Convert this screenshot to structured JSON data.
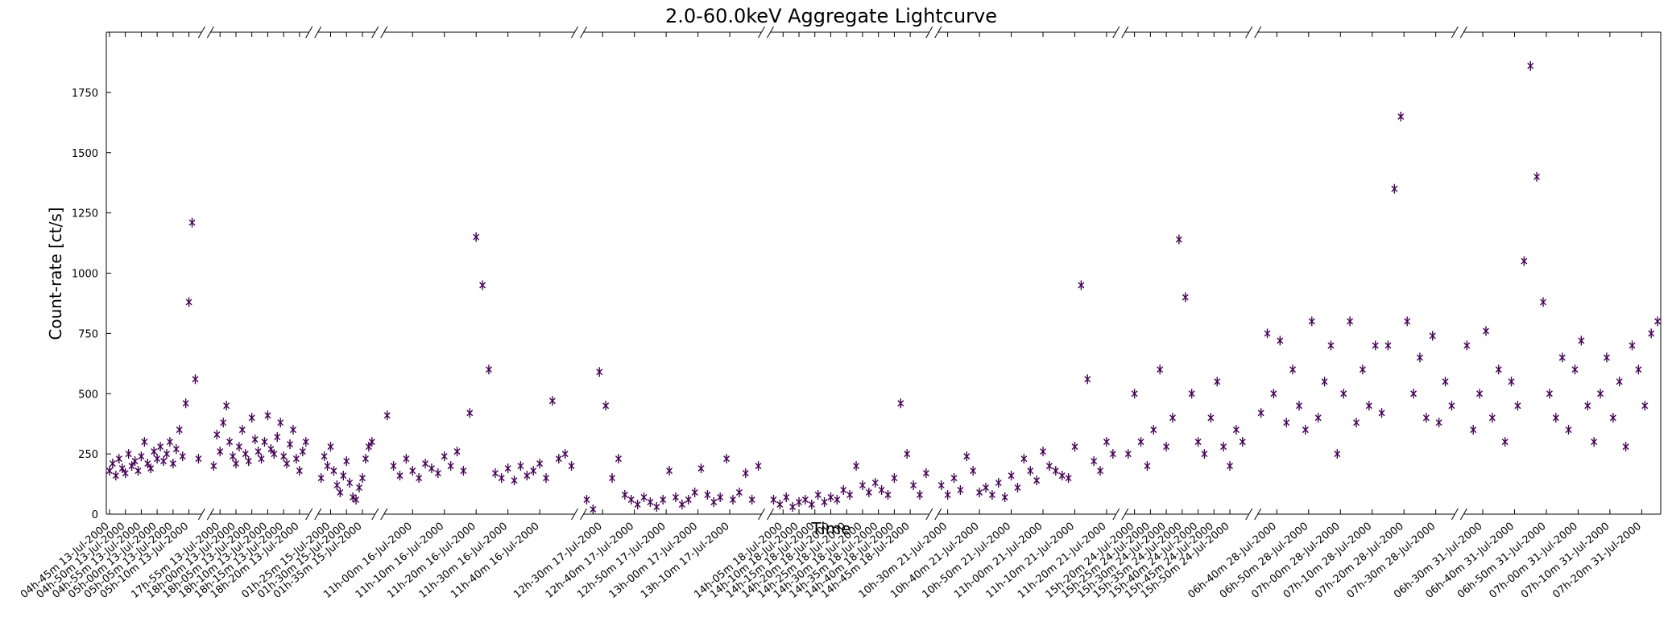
{
  "chart_data": {
    "type": "scatter",
    "title": "2.0-60.0keV Aggregate Lightcurve",
    "xlabel": "Time",
    "ylabel": "Count-rate [ct/s]",
    "color": "#440154",
    "ylim": [
      0,
      2000
    ],
    "yticks": [
      0,
      250,
      500,
      750,
      1000,
      1250,
      1500,
      1750
    ],
    "segments": [
      {
        "xlim": [
          284,
          314
        ],
        "xticks": [
          {
            "value": 285,
            "label": "04h-45m 13-Jul-2000"
          },
          {
            "value": 290,
            "label": "04h-50m 13-Jul-2000"
          },
          {
            "value": 295,
            "label": "04h-55m 13-Jul-2000"
          },
          {
            "value": 300,
            "label": "05h-00m 13-Jul-2000"
          },
          {
            "value": 305,
            "label": "05h-05m 13-Jul-2000"
          },
          {
            "value": 310,
            "label": "05h-10m 13-Jul-2000"
          }
        ],
        "x": [
          285,
          286,
          287,
          288,
          289,
          290,
          291,
          292,
          293,
          294,
          295,
          296,
          297,
          298,
          299,
          300,
          301,
          302,
          303,
          304,
          305,
          306,
          307,
          308,
          309,
          310,
          311,
          312,
          313
        ],
        "values": [
          180,
          210,
          160,
          230,
          190,
          170,
          250,
          200,
          220,
          180,
          240,
          300,
          210,
          190,
          260,
          230,
          280,
          220,
          250,
          300,
          210,
          270,
          350,
          240,
          460,
          880,
          1210,
          560,
          230
        ]
      },
      {
        "xlim": [
          1072,
          1103
        ],
        "xticks": [
          {
            "value": 1075,
            "label": "17h-55m 13-Jul-2000"
          },
          {
            "value": 1080,
            "label": "18h-00m 13-Jul-2000"
          },
          {
            "value": 1085,
            "label": "18h-05m 13-Jul-2000"
          },
          {
            "value": 1090,
            "label": "18h-10m 13-Jul-2000"
          },
          {
            "value": 1095,
            "label": "18h-15m 13-Jul-2000"
          },
          {
            "value": 1100,
            "label": "18h-20m 13-Jul-2000"
          }
        ],
        "x": [
          1073,
          1074,
          1075,
          1076,
          1077,
          1078,
          1079,
          1080,
          1081,
          1082,
          1083,
          1084,
          1085,
          1086,
          1087,
          1088,
          1089,
          1090,
          1091,
          1092,
          1093,
          1094,
          1095,
          1096,
          1097,
          1098,
          1099,
          1100,
          1101,
          1102
        ],
        "values": [
          200,
          330,
          260,
          380,
          450,
          300,
          240,
          210,
          280,
          350,
          250,
          220,
          400,
          310,
          260,
          230,
          300,
          410,
          270,
          250,
          320,
          380,
          240,
          210,
          290,
          350,
          230,
          180,
          260,
          300
        ]
      },
      {
        "xlim": [
          81,
          99
        ],
        "xticks": [
          {
            "value": 85,
            "label": "01h-25m 15-Jul-2000"
          },
          {
            "value": 90,
            "label": "01h-30m 15-Jul-2000"
          },
          {
            "value": 95,
            "label": "01h-35m 15-Jul-2000"
          }
        ],
        "x": [
          82,
          83,
          84,
          85,
          86,
          87,
          88,
          89,
          90,
          91,
          92,
          93,
          94,
          95,
          96,
          97,
          98
        ],
        "values": [
          150,
          240,
          200,
          280,
          180,
          120,
          90,
          160,
          220,
          130,
          70,
          60,
          110,
          150,
          230,
          280,
          300
        ]
      },
      {
        "xlim": [
          651,
          711
        ],
        "xticks": [
          {
            "value": 660,
            "label": "11h-00m 16-Jul-2000"
          },
          {
            "value": 670,
            "label": "11h-10m 16-Jul-2000"
          },
          {
            "value": 680,
            "label": "11h-20m 16-Jul-2000"
          },
          {
            "value": 690,
            "label": "11h-30m 16-Jul-2000"
          },
          {
            "value": 700,
            "label": "11h-40m 16-Jul-2000"
          }
        ],
        "x": [
          652,
          654,
          656,
          658,
          660,
          662,
          664,
          666,
          668,
          670,
          672,
          674,
          676,
          678,
          680,
          682,
          684,
          686,
          688,
          690,
          692,
          694,
          696,
          698,
          700,
          702,
          704,
          706,
          708,
          710
        ],
        "values": [
          410,
          200,
          160,
          230,
          180,
          150,
          210,
          190,
          170,
          240,
          200,
          260,
          180,
          420,
          1150,
          950,
          600,
          170,
          150,
          190,
          140,
          200,
          160,
          180,
          210,
          150,
          470,
          230,
          250,
          200
        ]
      },
      {
        "xlim": [
          744,
          800
        ],
        "xticks": [
          {
            "value": 750,
            "label": "12h-30m 17-Jul-2000"
          },
          {
            "value": 760,
            "label": "12h-40m 17-Jul-2000"
          },
          {
            "value": 770,
            "label": "12h-50m 17-Jul-2000"
          },
          {
            "value": 780,
            "label": "13h-00m 17-Jul-2000"
          },
          {
            "value": 790,
            "label": "13h-10m 17-Jul-2000"
          }
        ],
        "x": [
          745,
          747,
          749,
          751,
          753,
          755,
          757,
          759,
          761,
          763,
          765,
          767,
          769,
          771,
          773,
          775,
          777,
          779,
          781,
          783,
          785,
          787,
          789,
          791,
          793,
          795,
          797,
          799
        ],
        "values": [
          60,
          20,
          590,
          450,
          150,
          230,
          80,
          60,
          40,
          70,
          50,
          30,
          60,
          180,
          70,
          40,
          60,
          90,
          190,
          80,
          50,
          70,
          230,
          60,
          90,
          170,
          60,
          200
        ]
      },
      {
        "xlim": [
          841,
          891
        ],
        "xticks": [
          {
            "value": 845,
            "label": "14h-05m 18-Jul-2000"
          },
          {
            "value": 850,
            "label": "14h-10m 18-Jul-2000"
          },
          {
            "value": 855,
            "label": "14h-15m 18-Jul-2000"
          },
          {
            "value": 860,
            "label": "14h-20m 18-Jul-2000"
          },
          {
            "value": 865,
            "label": "14h-25m 18-Jul-2000"
          },
          {
            "value": 870,
            "label": "14h-30m 18-Jul-2000"
          },
          {
            "value": 875,
            "label": "14h-35m 18-Jul-2000"
          },
          {
            "value": 880,
            "label": "14h-40m 18-Jul-2000"
          },
          {
            "value": 885,
            "label": "14h-45m 18-Jul-2000"
          }
        ],
        "x": [
          842,
          844,
          846,
          848,
          850,
          852,
          854,
          856,
          858,
          860,
          862,
          864,
          866,
          868,
          870,
          872,
          874,
          876,
          878,
          880,
          882,
          884,
          886,
          888,
          890
        ],
        "values": [
          60,
          40,
          70,
          30,
          50,
          60,
          40,
          80,
          50,
          70,
          60,
          100,
          80,
          200,
          120,
          90,
          130,
          100,
          80,
          150,
          460,
          250,
          120,
          80,
          170
        ]
      },
      {
        "xlim": [
          627,
          683
        ],
        "xticks": [
          {
            "value": 630,
            "label": "10h-30m 21-Jul-2000"
          },
          {
            "value": 640,
            "label": "10h-40m 21-Jul-2000"
          },
          {
            "value": 650,
            "label": "10h-50m 21-Jul-2000"
          },
          {
            "value": 660,
            "label": "11h-00m 21-Jul-2000"
          },
          {
            "value": 670,
            "label": "11h-10m 21-Jul-2000"
          },
          {
            "value": 680,
            "label": "11h-20m 21-Jul-2000"
          }
        ],
        "x": [
          628,
          630,
          632,
          634,
          636,
          638,
          640,
          642,
          644,
          646,
          648,
          650,
          652,
          654,
          656,
          658,
          660,
          662,
          664,
          666,
          668,
          670,
          672,
          674,
          676,
          678,
          680,
          682
        ],
        "values": [
          120,
          80,
          150,
          100,
          240,
          180,
          90,
          110,
          80,
          130,
          70,
          160,
          110,
          230,
          180,
          140,
          260,
          200,
          180,
          160,
          150,
          280,
          950,
          560,
          220,
          180,
          300,
          250
        ]
      },
      {
        "xlim": [
          917,
          956
        ],
        "xticks": [
          {
            "value": 920,
            "label": "15h-20m 24-Jul-2000"
          },
          {
            "value": 925,
            "label": "15h-25m 24-Jul-2000"
          },
          {
            "value": 930,
            "label": "15h-30m 24-Jul-2000"
          },
          {
            "value": 935,
            "label": "15h-35m 24-Jul-2000"
          },
          {
            "value": 940,
            "label": "15h-40m 24-Jul-2000"
          },
          {
            "value": 945,
            "label": "15h-45m 24-Jul-2000"
          },
          {
            "value": 950,
            "label": "15h-50m 24-Jul-2000"
          }
        ],
        "x": [
          918,
          920,
          922,
          924,
          926,
          928,
          930,
          932,
          934,
          936,
          938,
          940,
          942,
          944,
          946,
          948,
          950,
          952,
          954
        ],
        "values": [
          250,
          500,
          300,
          200,
          350,
          600,
          280,
          400,
          1140,
          900,
          500,
          300,
          250,
          400,
          550,
          280,
          200,
          350,
          300
        ]
      },
      {
        "xlim": [
          394,
          456
        ],
        "xticks": [
          {
            "value": 400,
            "label": "06h-40m 28-Jul-2000"
          },
          {
            "value": 410,
            "label": "06h-50m 28-Jul-2000"
          },
          {
            "value": 420,
            "label": "07h-00m 28-Jul-2000"
          },
          {
            "value": 430,
            "label": "07h-10m 28-Jul-2000"
          },
          {
            "value": 440,
            "label": "07h-20m 28-Jul-2000"
          },
          {
            "value": 450,
            "label": "07h-30m 28-Jul-2000"
          }
        ],
        "x": [
          395,
          397,
          399,
          401,
          403,
          405,
          407,
          409,
          411,
          413,
          415,
          417,
          419,
          421,
          423,
          425,
          427,
          429,
          431,
          433,
          435,
          437,
          439,
          441,
          443,
          445,
          447,
          449,
          451,
          453,
          455
        ],
        "values": [
          420,
          750,
          500,
          720,
          380,
          600,
          450,
          350,
          800,
          400,
          550,
          700,
          250,
          500,
          800,
          380,
          600,
          450,
          700,
          420,
          700,
          1350,
          1650,
          800,
          500,
          650,
          400,
          740,
          380,
          550,
          450
        ]
      },
      {
        "xlim": [
          384,
          446
        ],
        "xticks": [
          {
            "value": 390,
            "label": "06h-30m 31-Jul-2000"
          },
          {
            "value": 400,
            "label": "06h-40m 31-Jul-2000"
          },
          {
            "value": 410,
            "label": "06h-50m 31-Jul-2000"
          },
          {
            "value": 420,
            "label": "07h-00m 31-Jul-2000"
          },
          {
            "value": 430,
            "label": "07h-10m 31-Jul-2000"
          },
          {
            "value": 440,
            "label": "07h-20m 31-Jul-2000"
          }
        ],
        "x": [
          385,
          387,
          389,
          391,
          393,
          395,
          397,
          399,
          401,
          403,
          405,
          407,
          409,
          411,
          413,
          415,
          417,
          419,
          421,
          423,
          425,
          427,
          429,
          431,
          433,
          435,
          437,
          439,
          441,
          443,
          445
        ],
        "values": [
          700,
          350,
          500,
          760,
          400,
          600,
          300,
          550,
          450,
          1050,
          1860,
          1400,
          880,
          500,
          400,
          650,
          350,
          600,
          720,
          450,
          300,
          500,
          650,
          400,
          550,
          280,
          700,
          600,
          450,
          750,
          800
        ]
      }
    ]
  }
}
